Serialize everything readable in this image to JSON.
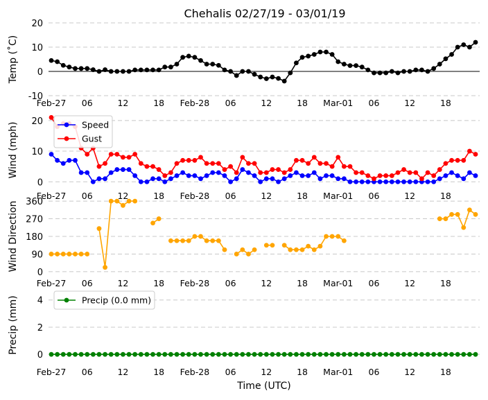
{
  "title": "Chehalis 02/27/19 - 03/01/19",
  "xlabel": "Time (UTC)",
  "x_tick_labels": [
    "Feb-27",
    "06",
    "12",
    "18",
    "Feb-28",
    "06",
    "12",
    "18",
    "Mar-01",
    "06",
    "12",
    "18"
  ],
  "times": [
    "02/27 00",
    "02/27 01",
    "02/27 02",
    "02/27 03",
    "02/27 04",
    "02/27 05",
    "02/27 06",
    "02/27 07",
    "02/27 08",
    "02/27 09",
    "02/27 10",
    "02/27 11",
    "02/27 12",
    "02/27 13",
    "02/27 14",
    "02/27 15",
    "02/27 16",
    "02/27 17",
    "02/27 18",
    "02/27 19",
    "02/27 20",
    "02/27 21",
    "02/27 22",
    "02/27 23",
    "02/28 00",
    "02/28 01",
    "02/28 02",
    "02/28 03",
    "02/28 04",
    "02/28 05",
    "02/28 06",
    "02/28 07",
    "02/28 08",
    "02/28 09",
    "02/28 10",
    "02/28 11",
    "02/28 12",
    "02/28 13",
    "02/28 14",
    "02/28 15",
    "02/28 16",
    "02/28 17",
    "02/28 18",
    "02/28 19",
    "02/28 20",
    "02/28 21",
    "02/28 22",
    "02/28 23",
    "03/01 00",
    "03/01 01",
    "03/01 02",
    "03/01 03",
    "03/01 04",
    "03/01 05",
    "03/01 06",
    "03/01 07",
    "03/01 08",
    "03/01 09",
    "03/01 10",
    "03/01 11",
    "03/01 12",
    "03/01 13",
    "03/01 14",
    "03/01 15",
    "03/01 16",
    "03/01 17",
    "03/01 18",
    "03/01 19",
    "03/01 20",
    "03/01 21",
    "03/01 22",
    "03/01 23"
  ],
  "chart_data": [
    {
      "type": "line",
      "ylabel": "Temp (˚C)",
      "ylim": [
        -10,
        20
      ],
      "yticks": [
        -10,
        0,
        10,
        20
      ],
      "zero_line": true,
      "series": [
        {
          "color": "#000000",
          "values": [
            4.5,
            4,
            2.5,
            1.8,
            1.2,
            1.2,
            1.2,
            0.7,
            0,
            0.7,
            0,
            0,
            0,
            0,
            0.6,
            0.6,
            0.6,
            0.6,
            0.6,
            1.8,
            1.8,
            3,
            5.8,
            6.3,
            5.8,
            4.5,
            3,
            3,
            2.5,
            0.6,
            0,
            -1.7,
            0,
            0,
            -1.2,
            -2.3,
            -3,
            -2.3,
            -2.9,
            -4,
            -0.6,
            3.5,
            5.8,
            6.3,
            7,
            8,
            8,
            7,
            4,
            3,
            2.4,
            2.4,
            1.8,
            0.6,
            -0.6,
            -0.6,
            -0.6,
            0,
            -0.6,
            0,
            0,
            0.6,
            0.6,
            0,
            1.2,
            3,
            5.2,
            7,
            10,
            11,
            10,
            12
          ]
        }
      ]
    },
    {
      "type": "line",
      "ylabel": "Wind (mph)",
      "ylim": [
        -1.3,
        22
      ],
      "yticks": [
        0,
        10,
        20
      ],
      "legend": "top-left",
      "series": [
        {
          "name": "Speed",
          "color": "#0000ff",
          "values": [
            9,
            7,
            6,
            7,
            7,
            3,
            3,
            0,
            1,
            1,
            3,
            4,
            4,
            4,
            2,
            0,
            0,
            1,
            1,
            0,
            1,
            2,
            3,
            2,
            2,
            1,
            2,
            3,
            3,
            2,
            0,
            1,
            4,
            3,
            2,
            0,
            1,
            1,
            0,
            1,
            2,
            3,
            2,
            2,
            3,
            1,
            2,
            2,
            1,
            1,
            0,
            0,
            0,
            0,
            0,
            0,
            0,
            0,
            0,
            0,
            0,
            0,
            0,
            0,
            0,
            1,
            2,
            3,
            2,
            1,
            3,
            2
          ]
        },
        {
          "name": "Gust",
          "color": "#ff0000",
          "values": [
            21,
            18,
            19,
            19,
            18,
            11,
            9,
            11,
            5,
            6,
            9,
            9,
            8,
            8,
            9,
            6,
            5,
            5,
            4,
            2,
            3,
            6,
            7,
            7,
            7,
            8,
            6,
            6,
            6,
            4,
            5,
            3,
            8,
            6,
            6,
            3,
            3,
            4,
            4,
            3,
            4,
            7,
            7,
            6,
            8,
            6,
            6,
            5,
            8,
            5,
            5,
            3,
            3,
            2,
            1,
            2,
            2,
            2,
            3,
            4,
            3,
            3,
            1,
            3,
            2,
            4,
            6,
            7,
            7,
            7,
            10,
            9
          ]
        }
      ]
    },
    {
      "type": "line",
      "ylabel": "Wind Direction",
      "ylim": [
        -18,
        378
      ],
      "yticks": [
        0,
        90,
        180,
        270,
        360
      ],
      "series": [
        {
          "color": "#ffa500",
          "values": [
            90,
            90,
            90,
            90,
            90,
            90,
            90,
            null,
            220,
            22,
            360,
            360,
            338,
            360,
            360,
            null,
            null,
            248,
            270,
            null,
            158,
            158,
            158,
            158,
            180,
            180,
            158,
            158,
            158,
            112,
            null,
            90,
            112,
            90,
            112,
            null,
            135,
            135,
            null,
            135,
            112,
            112,
            112,
            130,
            112,
            130,
            180,
            180,
            180,
            158,
            null,
            null,
            null,
            null,
            null,
            null,
            null,
            null,
            null,
            null,
            null,
            null,
            null,
            null,
            null,
            270,
            270,
            292,
            292,
            225,
            315,
            292
          ]
        }
      ]
    },
    {
      "type": "line",
      "ylabel": "Precip (mm)",
      "ylim": [
        -0.45,
        4.75
      ],
      "yticks": [
        0,
        2,
        4
      ],
      "legend": "top-left",
      "series": [
        {
          "name": "Precip (0.0 mm)",
          "color": "#008000",
          "values": [
            0,
            0,
            0,
            0,
            0,
            0,
            0,
            0,
            0,
            0,
            0,
            0,
            0,
            0,
            0,
            0,
            0,
            0,
            0,
            0,
            0,
            0,
            0,
            0,
            0,
            0,
            0,
            0,
            0,
            0,
            0,
            0,
            0,
            0,
            0,
            0,
            0,
            0,
            0,
            0,
            0,
            0,
            0,
            0,
            0,
            0,
            0,
            0,
            0,
            0,
            0,
            0,
            0,
            0,
            0,
            0,
            0,
            0,
            0,
            0,
            0,
            0,
            0,
            0,
            0,
            0,
            0,
            0,
            0,
            0,
            0,
            0
          ]
        }
      ]
    }
  ]
}
